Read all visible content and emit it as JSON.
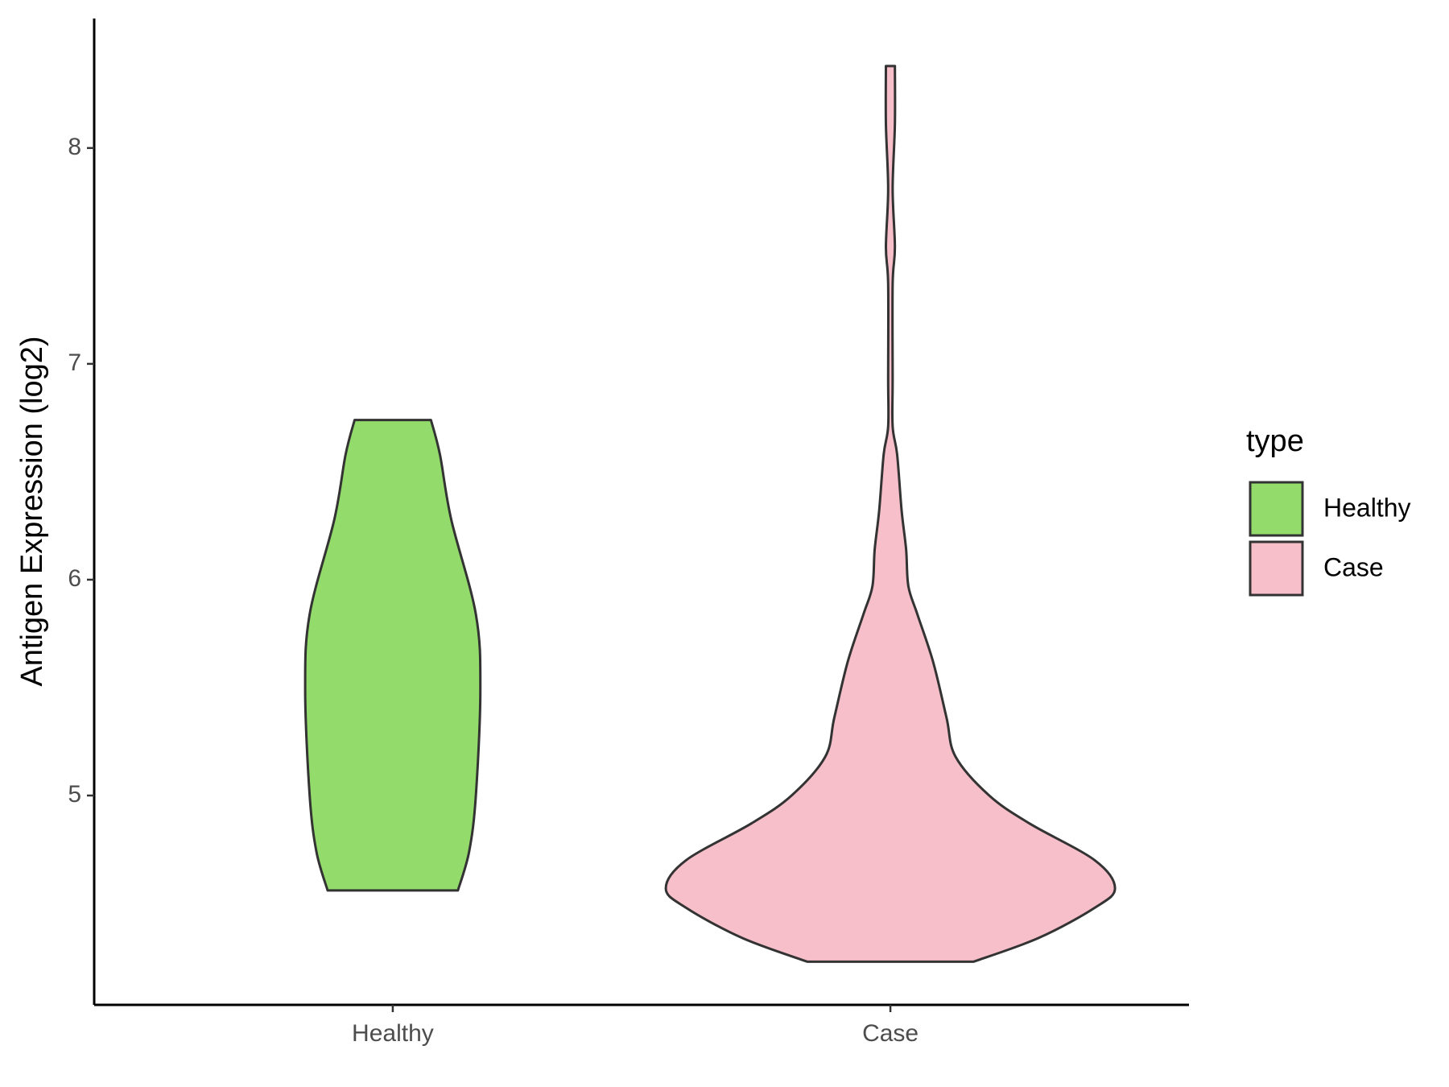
{
  "chart_data": {
    "type": "violin",
    "y_label": "Antigen Expression (log2)",
    "categories": [
      "Healthy",
      "Case"
    ],
    "legend_title": "type",
    "legend_position": "right",
    "ylim": [
      4.03,
      8.6
    ],
    "yticks": [
      5,
      6,
      7,
      8
    ],
    "series": [
      {
        "name": "Healthy",
        "color": "#93dc6b",
        "y": [
          4.56,
          4.74,
          5.0,
          5.49,
          5.84,
          6.28,
          6.58,
          6.74
        ],
        "widths": [
          0.29,
          0.34,
          0.37,
          0.39,
          0.37,
          0.26,
          0.21,
          0.17
        ]
      },
      {
        "name": "Case",
        "color": "#f7bfca",
        "y": [
          4.23,
          4.34,
          4.48,
          4.57,
          4.7,
          4.87,
          5.0,
          5.18,
          5.36,
          5.62,
          5.84,
          5.97,
          6.14,
          6.32,
          6.58,
          6.71,
          6.93,
          7.37,
          7.54,
          7.81,
          8.11,
          8.38
        ],
        "widths": [
          0.37,
          0.66,
          0.91,
          1,
          0.91,
          0.62,
          0.44,
          0.29,
          0.25,
          0.19,
          0.12,
          0.08,
          0.07,
          0.05,
          0.03,
          0.01,
          0.01,
          0.01,
          0.02,
          0.01,
          0.02,
          0.02
        ]
      }
    ]
  }
}
